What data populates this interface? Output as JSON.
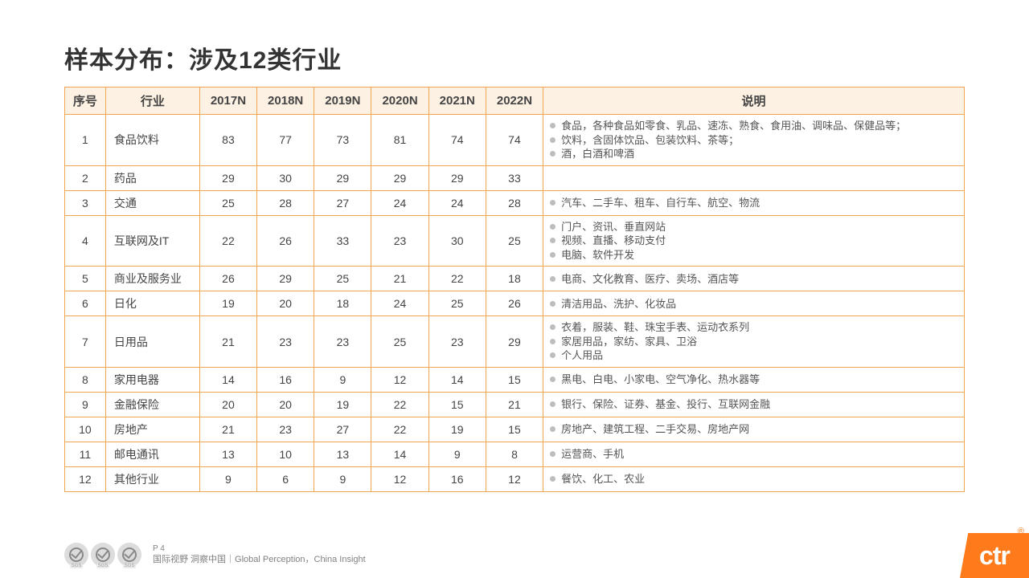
{
  "title": "样本分布：涉及12类行业",
  "columns": [
    "序号",
    "行业",
    "2017N",
    "2018N",
    "2019N",
    "2020N",
    "2021N",
    "2022N",
    "说明"
  ],
  "rows": [
    {
      "seq": "1",
      "industry": "食品饮料",
      "y": [
        "83",
        "77",
        "73",
        "81",
        "74",
        "74"
      ],
      "desc": [
        "食品，各种食品如零食、乳品、速冻、熟食、食用油、调味品、保健品等；",
        "饮料，含固体饮品、包装饮料、茶等；",
        "酒，白酒和啤酒"
      ]
    },
    {
      "seq": "2",
      "industry": "药品",
      "y": [
        "29",
        "30",
        "29",
        "29",
        "29",
        "33"
      ],
      "desc": []
    },
    {
      "seq": "3",
      "industry": "交通",
      "y": [
        "25",
        "28",
        "27",
        "24",
        "24",
        "28"
      ],
      "desc": [
        "汽车、二手车、租车、自行车、航空、物流"
      ]
    },
    {
      "seq": "4",
      "industry": "互联网及IT",
      "y": [
        "22",
        "26",
        "33",
        "23",
        "30",
        "25"
      ],
      "desc": [
        "门户、资讯、垂直网站",
        "视频、直播、移动支付",
        "电脑、软件开发"
      ]
    },
    {
      "seq": "5",
      "industry": "商业及服务业",
      "y": [
        "26",
        "29",
        "25",
        "21",
        "22",
        "18"
      ],
      "desc": [
        "电商、文化教育、医疗、卖场、酒店等"
      ]
    },
    {
      "seq": "6",
      "industry": "日化",
      "y": [
        "19",
        "20",
        "18",
        "24",
        "25",
        "26"
      ],
      "desc": [
        "清洁用品、洗护、化妆品"
      ]
    },
    {
      "seq": "7",
      "industry": "日用品",
      "y": [
        "21",
        "23",
        "23",
        "25",
        "23",
        "29"
      ],
      "desc": [
        "衣着，服装、鞋、珠宝手表、运动衣系列",
        "家居用品，家纺、家具、卫浴",
        "个人用品"
      ]
    },
    {
      "seq": "8",
      "industry": "家用电器",
      "y": [
        "14",
        "16",
        "9",
        "12",
        "14",
        "15"
      ],
      "desc": [
        "黑电、白电、小家电、空气净化、热水器等"
      ]
    },
    {
      "seq": "9",
      "industry": "金融保险",
      "y": [
        "20",
        "20",
        "19",
        "22",
        "15",
        "21"
      ],
      "desc": [
        "银行、保险、证券、基金、投行、互联网金融"
      ]
    },
    {
      "seq": "10",
      "industry": "房地产",
      "y": [
        "21",
        "23",
        "27",
        "22",
        "19",
        "15"
      ],
      "desc": [
        "房地产、建筑工程、二手交易、房地产网"
      ]
    },
    {
      "seq": "11",
      "industry": "邮电通讯",
      "y": [
        "13",
        "10",
        "13",
        "14",
        "9",
        "8"
      ],
      "desc": [
        "运营商、手机"
      ]
    },
    {
      "seq": "12",
      "industry": "其他行业",
      "y": [
        "9",
        "6",
        "9",
        "12",
        "16",
        "12"
      ],
      "desc": [
        "餐饮、化工、农业"
      ]
    }
  ],
  "footer": {
    "page": "P 4",
    "tagline": "国际视野 洞察中国｜Global Perception，China Insight",
    "badge_label": "SGS"
  },
  "logo": {
    "text": "ctr",
    "reg": "®"
  },
  "colors": {
    "border": "#f0a64e",
    "header_bg": "#fdf1e3",
    "bullet": "#bdbdbd",
    "logo_bg": "#ff7a1a",
    "text": "#444444",
    "footer_text": "#808080"
  }
}
